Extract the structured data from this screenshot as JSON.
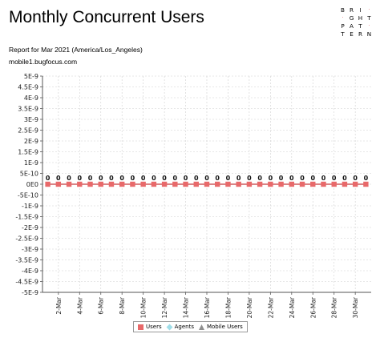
{
  "report": {
    "title": "Monthly Concurrent Users",
    "period_line": "Report for Mar 2021 (America/Los_Angeles)",
    "host": "mobile1.bugfocus.com"
  },
  "logo": {
    "rows": [
      [
        "B",
        "R",
        "I",
        "·"
      ],
      [
        "·",
        "G",
        "H",
        "T"
      ],
      [
        "P",
        "A",
        "T",
        "·"
      ],
      [
        "T",
        "E",
        "R",
        "N"
      ]
    ]
  },
  "colors": {
    "users": "#e8696a",
    "agents": "#9fdde8",
    "mobile_users": "#8f8f8f",
    "grid": "#d0d0d0",
    "logo_dot": "#e0484f"
  },
  "chart_data": {
    "type": "line",
    "title": "",
    "xlabel": "",
    "ylabel": "",
    "x": [
      "1-Mar",
      "2-Mar",
      "3-Mar",
      "4-Mar",
      "5-Mar",
      "6-Mar",
      "7-Mar",
      "8-Mar",
      "9-Mar",
      "10-Mar",
      "11-Mar",
      "12-Mar",
      "13-Mar",
      "14-Mar",
      "15-Mar",
      "16-Mar",
      "17-Mar",
      "18-Mar",
      "19-Mar",
      "20-Mar",
      "21-Mar",
      "22-Mar",
      "23-Mar",
      "24-Mar",
      "25-Mar",
      "26-Mar",
      "27-Mar",
      "28-Mar",
      "29-Mar",
      "30-Mar",
      "31-Mar"
    ],
    "x_tick_labels": [
      "2-Mar",
      "4-Mar",
      "6-Mar",
      "8-Mar",
      "10-Mar",
      "12-Mar",
      "14-Mar",
      "16-Mar",
      "18-Mar",
      "20-Mar",
      "22-Mar",
      "24-Mar",
      "26-Mar",
      "28-Mar",
      "30-Mar"
    ],
    "y_tick_labels": [
      "5E-9",
      "4.5E-9",
      "4E-9",
      "3.5E-9",
      "3E-9",
      "2.5E-9",
      "2E-9",
      "1.5E-9",
      "1E-9",
      "5E-10",
      "0E0",
      "-5E-10",
      "-1E-9",
      "-1.5E-9",
      "-2E-9",
      "-2.5E-9",
      "-3E-9",
      "-3.5E-9",
      "-4E-9",
      "-4.5E-9",
      "-5E-9"
    ],
    "ylim": [
      -5e-09,
      5e-09
    ],
    "grid": true,
    "legend_position": "bottom",
    "series": [
      {
        "name": "Users",
        "values": [
          0,
          0,
          0,
          0,
          0,
          0,
          0,
          0,
          0,
          0,
          0,
          0,
          0,
          0,
          0,
          0,
          0,
          0,
          0,
          0,
          0,
          0,
          0,
          0,
          0,
          0,
          0,
          0,
          0,
          0,
          0
        ],
        "data_labels": [
          "0",
          "0",
          "0",
          "0",
          "0",
          "0",
          "0",
          "0",
          "0",
          "0",
          "0",
          "0",
          "0",
          "0",
          "0",
          "0",
          "0",
          "0",
          "0",
          "0",
          "0",
          "0",
          "0",
          "0",
          "0",
          "0",
          "0",
          "0",
          "0",
          "0",
          "0"
        ]
      },
      {
        "name": "Agents",
        "values": [
          0,
          0,
          0,
          0,
          0,
          0,
          0,
          0,
          0,
          0,
          0,
          0,
          0,
          0,
          0,
          0,
          0,
          0,
          0,
          0,
          0,
          0,
          0,
          0,
          0,
          0,
          0,
          0,
          0,
          0,
          0
        ]
      },
      {
        "name": "Mobile Users",
        "values": [
          0,
          0,
          0,
          0,
          0,
          0,
          0,
          0,
          0,
          0,
          0,
          0,
          0,
          0,
          0,
          0,
          0,
          0,
          0,
          0,
          0,
          0,
          0,
          0,
          0,
          0,
          0,
          0,
          0,
          0,
          0
        ]
      }
    ]
  }
}
